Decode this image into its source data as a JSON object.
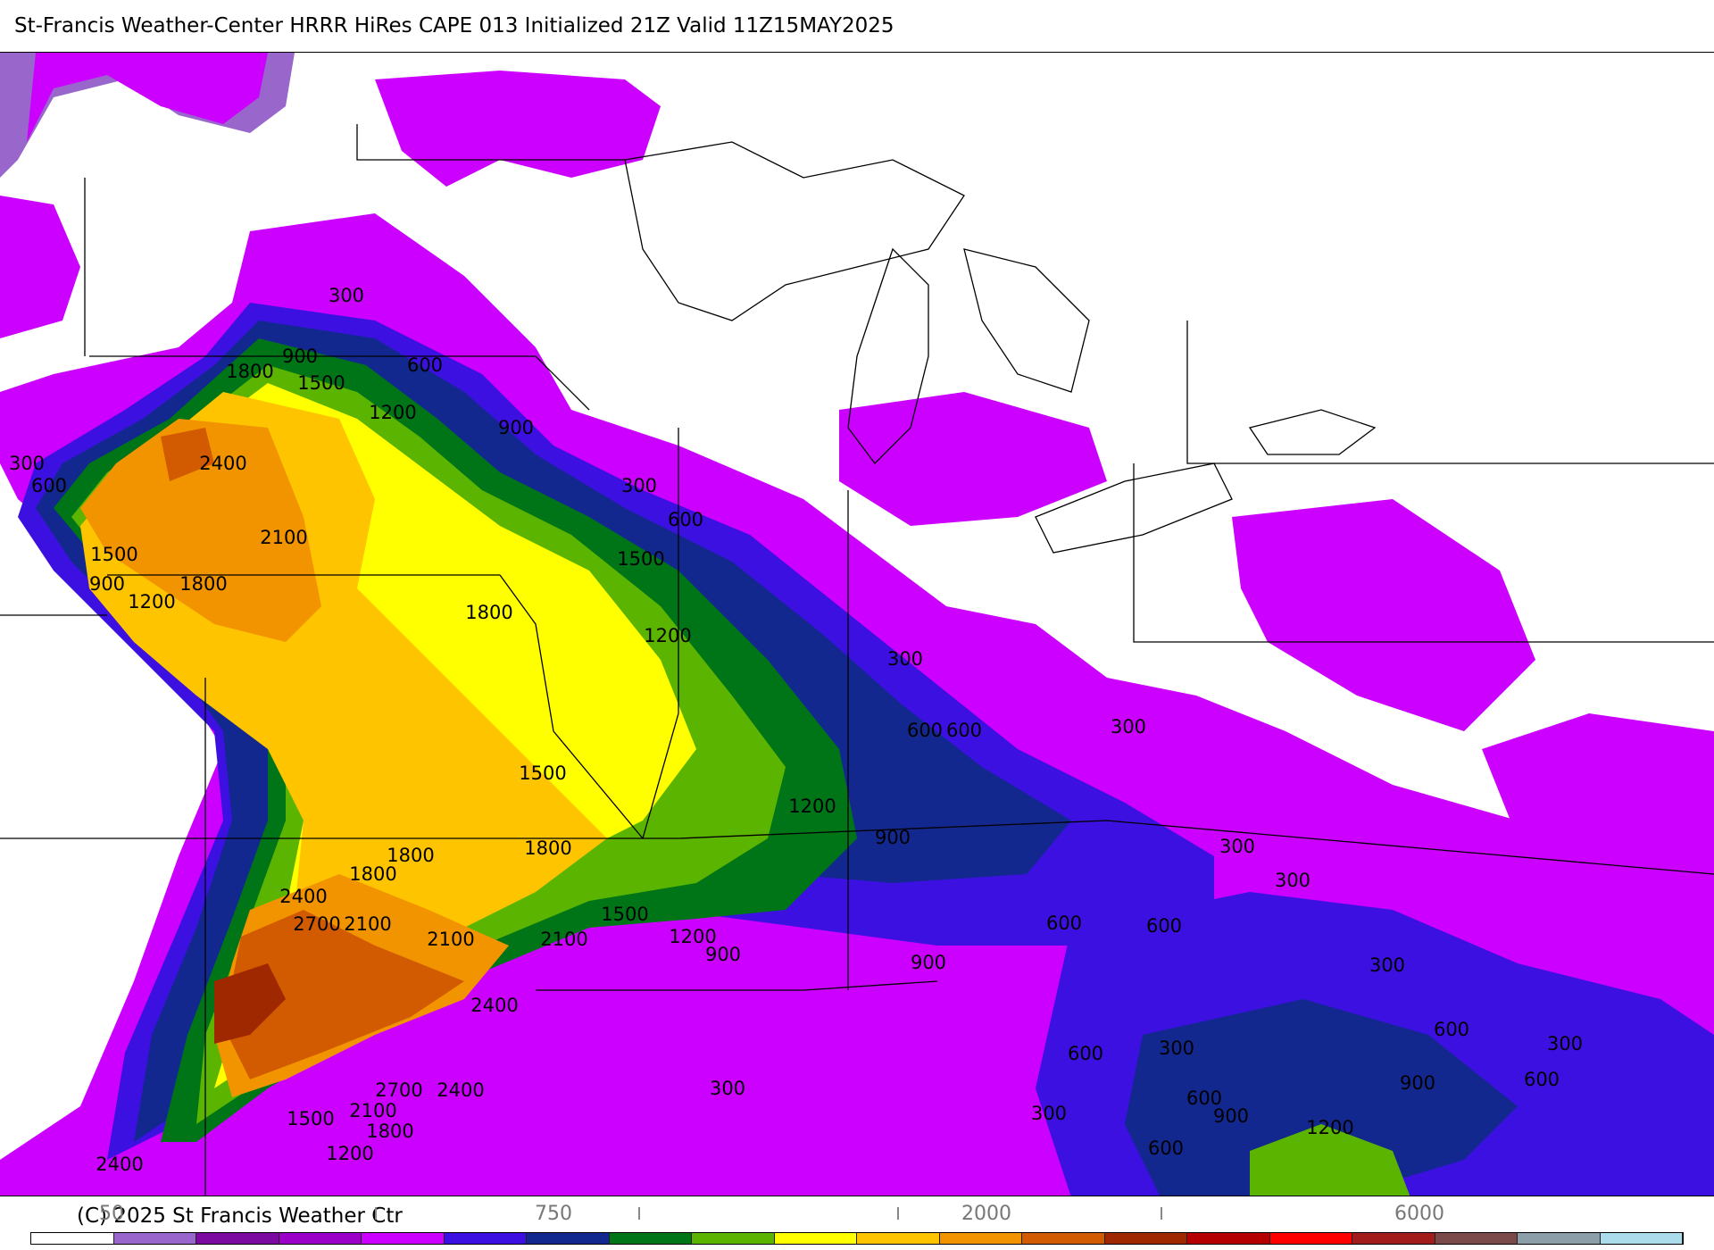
{
  "title": "St-Francis Weather-Center HRRR HiRes CAPE  013 Initialized  21Z Valid 11Z15MAY2025",
  "copyright": "(C) 2025 St Francis Weather Ctr",
  "colorbar": {
    "colors": [
      "#ffffff",
      "#9966cc",
      "#7a0aa0",
      "#9b00c8",
      "#cc00ff",
      "#3c10e0",
      "#12288f",
      "#007518",
      "#5ab400",
      "#ffff00",
      "#ffc400",
      "#f29400",
      "#d25a00",
      "#a02800",
      "#b40000",
      "#ff0000",
      "#a21c1c",
      "#7a4a4a",
      "#8c9ea8",
      "#aadcec"
    ],
    "tick_labels": [
      "50",
      "750",
      "2000",
      "6000"
    ]
  },
  "contour_labels": [
    {
      "text": "300"
    },
    {
      "text": "900"
    },
    {
      "text": "600"
    },
    {
      "text": "1800"
    },
    {
      "text": "1500"
    },
    {
      "text": "1200"
    },
    {
      "text": "900"
    },
    {
      "text": "2400"
    },
    {
      "text": "300"
    },
    {
      "text": "600"
    },
    {
      "text": "300"
    },
    {
      "text": "600"
    },
    {
      "text": "2100"
    },
    {
      "text": "1500"
    },
    {
      "text": "900"
    },
    {
      "text": "1500"
    },
    {
      "text": "1800"
    },
    {
      "text": "1200"
    },
    {
      "text": "1800"
    },
    {
      "text": "1200"
    },
    {
      "text": "300"
    },
    {
      "text": "600"
    },
    {
      "text": "600"
    },
    {
      "text": "300"
    },
    {
      "text": "1500"
    },
    {
      "text": "1200"
    },
    {
      "text": "900"
    },
    {
      "text": "1800"
    },
    {
      "text": "1800"
    },
    {
      "text": "1800"
    },
    {
      "text": "300"
    },
    {
      "text": "300"
    },
    {
      "text": "2400"
    },
    {
      "text": "2700"
    },
    {
      "text": "2100"
    },
    {
      "text": "2100"
    },
    {
      "text": "2100"
    },
    {
      "text": "1500"
    },
    {
      "text": "600"
    },
    {
      "text": "600"
    },
    {
      "text": "1200"
    },
    {
      "text": "900"
    },
    {
      "text": "900"
    },
    {
      "text": "300"
    },
    {
      "text": "2400"
    },
    {
      "text": "600"
    },
    {
      "text": "600"
    },
    {
      "text": "300"
    },
    {
      "text": "300"
    },
    {
      "text": "900"
    },
    {
      "text": "600"
    },
    {
      "text": "300"
    },
    {
      "text": "2700"
    },
    {
      "text": "2400"
    },
    {
      "text": "600"
    },
    {
      "text": "900"
    },
    {
      "text": "1500"
    },
    {
      "text": "2100"
    },
    {
      "text": "300"
    },
    {
      "text": "1800"
    },
    {
      "text": "1200"
    },
    {
      "text": "1200"
    },
    {
      "text": "600"
    },
    {
      "text": "2400"
    }
  ]
}
